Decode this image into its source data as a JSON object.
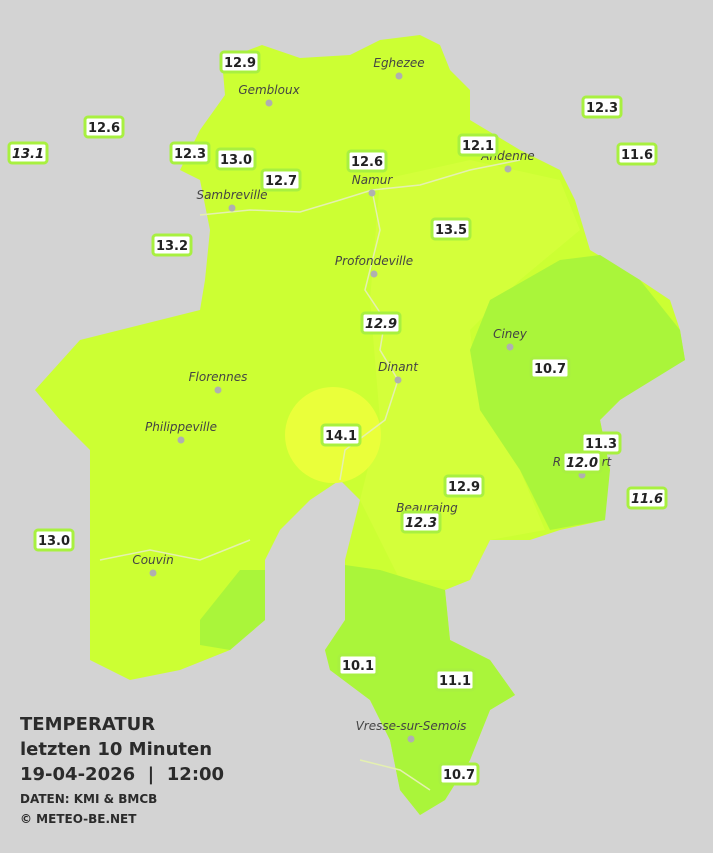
{
  "legend": {
    "title": "TEMPERATUR",
    "period": "letzten 10 Minuten",
    "datetime": "19-04-2026  |  12:00",
    "source": "DATEN: KMI & BMCB",
    "copyright": "© METEO-BE.NET"
  },
  "towns": [
    {
      "name": "Eghezee"
    },
    {
      "name": "Gembloux"
    },
    {
      "name": "Andenne"
    },
    {
      "name": "Namur"
    },
    {
      "name": "Sambreville"
    },
    {
      "name": "Profondeville"
    },
    {
      "name": "Ciney"
    },
    {
      "name": "Dinant"
    },
    {
      "name": "Florennes"
    },
    {
      "name": "Philippeville"
    },
    {
      "name": "Rochefort"
    },
    {
      "name": "Beauraing"
    },
    {
      "name": "Couvin"
    },
    {
      "name": "Vresse-sur-Semois"
    }
  ],
  "stations": [
    {
      "value": "12.9",
      "italic": false
    },
    {
      "value": "12.6",
      "italic": false
    },
    {
      "value": "13.1",
      "italic": true
    },
    {
      "value": "12.3",
      "italic": false
    },
    {
      "value": "13.0",
      "italic": false
    },
    {
      "value": "12.7",
      "italic": false
    },
    {
      "value": "12.6",
      "italic": false
    },
    {
      "value": "12.1",
      "italic": false
    },
    {
      "value": "12.3",
      "italic": false
    },
    {
      "value": "11.6",
      "italic": false
    },
    {
      "value": "13.2",
      "italic": false
    },
    {
      "value": "13.5",
      "italic": false
    },
    {
      "value": "12.9",
      "italic": true
    },
    {
      "value": "10.7",
      "italic": false
    },
    {
      "value": "14.1",
      "italic": false
    },
    {
      "value": "11.3",
      "italic": false
    },
    {
      "value": "12.0",
      "italic": true
    },
    {
      "value": "11.6",
      "italic": true
    },
    {
      "value": "12.9",
      "italic": false
    },
    {
      "value": "12.3",
      "italic": true
    },
    {
      "value": "13.0",
      "italic": false
    },
    {
      "value": "10.1",
      "italic": false
    },
    {
      "value": "11.1",
      "italic": false
    },
    {
      "value": "10.7",
      "italic": false
    }
  ]
}
